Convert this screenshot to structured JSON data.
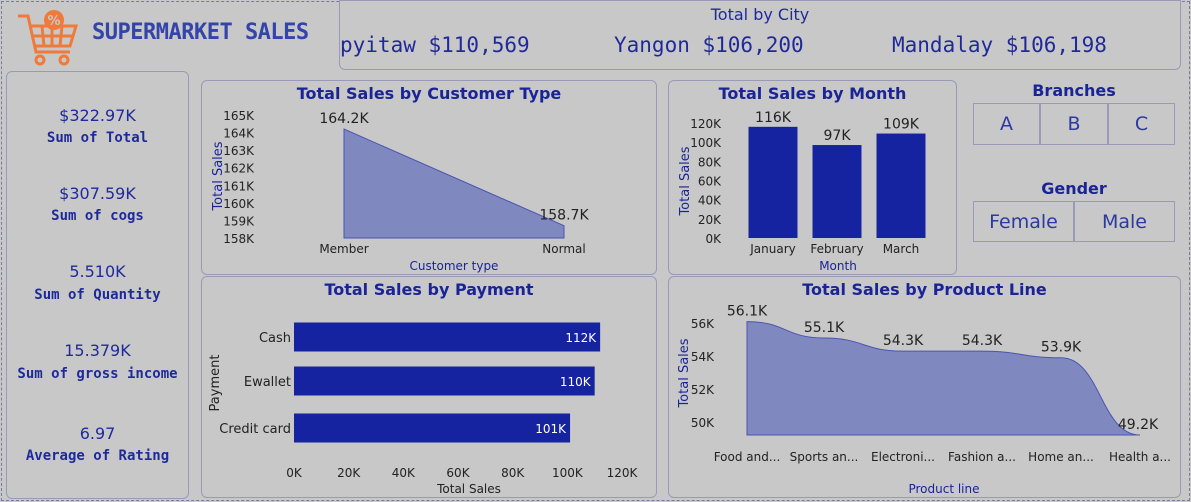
{
  "header": {
    "title": "SUPERMARKET SALES",
    "city_card_title": "Total by City",
    "cities": [
      {
        "label": "pyitaw $110,569"
      },
      {
        "label": "Yangon $106,200"
      },
      {
        "label": "Mandalay $106,198"
      }
    ]
  },
  "kpis": [
    {
      "value": "$322.97K",
      "label": "Sum of Total"
    },
    {
      "value": "$307.59K",
      "label": "Sum of cogs"
    },
    {
      "value": "5.510K",
      "label": "Sum of Quantity"
    },
    {
      "value": "15.379K",
      "label": "Sum of gross income"
    },
    {
      "value": "6.97",
      "label": "Average of Rating"
    }
  ],
  "slicers": {
    "branches_title": "Branches",
    "branches": [
      "A",
      "B",
      "C"
    ],
    "gender_title": "Gender",
    "genders": [
      "Female",
      "Male"
    ]
  },
  "colors": {
    "bar": "#1523a0",
    "area": "#8088c0",
    "title": "#1a2496"
  },
  "chart_data": [
    {
      "id": "customer",
      "type": "area",
      "title": "Total Sales by Customer Type",
      "xlabel": "Customer type",
      "ylabel": "Total Sales",
      "categories": [
        "Member",
        "Normal"
      ],
      "values": [
        164.2,
        158.7
      ],
      "data_labels": [
        "164.2K",
        "158.7K"
      ],
      "ylim": [
        158,
        165
      ],
      "yticks": [
        "158K",
        "159K",
        "160K",
        "161K",
        "162K",
        "163K",
        "164K",
        "165K"
      ]
    },
    {
      "id": "month",
      "type": "bar",
      "title": "Total Sales by Month",
      "xlabel": "Month",
      "ylabel": "Total Sales",
      "categories": [
        "January",
        "February",
        "March"
      ],
      "values": [
        116,
        97,
        109
      ],
      "data_labels": [
        "116K",
        "97K",
        "109K"
      ],
      "ylim": [
        0,
        120
      ],
      "yticks": [
        "0K",
        "20K",
        "40K",
        "60K",
        "80K",
        "100K",
        "120K"
      ]
    },
    {
      "id": "payment",
      "type": "bar",
      "orientation": "horizontal",
      "title": "Total Sales by Payment",
      "xlabel": "Total Sales",
      "ylabel": "Payment",
      "categories": [
        "Cash",
        "Ewallet",
        "Credit card"
      ],
      "values": [
        112,
        110,
        101
      ],
      "data_labels": [
        "112K",
        "110K",
        "101K"
      ],
      "xlim": [
        0,
        120
      ],
      "xticks": [
        "0K",
        "20K",
        "40K",
        "60K",
        "80K",
        "100K",
        "120K"
      ]
    },
    {
      "id": "product",
      "type": "area",
      "title": "Total Sales by Product Line",
      "xlabel": "Product line",
      "ylabel": "Total Sales",
      "categories": [
        "Food and...",
        "Sports an...",
        "Electroni...",
        "Fashion a...",
        "Home an...",
        "Health a..."
      ],
      "values": [
        56.1,
        55.1,
        54.3,
        54.3,
        53.9,
        49.2
      ],
      "data_labels": [
        "56.1K",
        "55.1K",
        "54.3K",
        "54.3K",
        "53.9K",
        "49.2K"
      ],
      "ylim": [
        49.2,
        56.5
      ],
      "yticks": [
        "50K",
        "52K",
        "54K",
        "56K"
      ],
      "ytick_values": [
        50,
        52,
        54,
        56
      ]
    }
  ]
}
